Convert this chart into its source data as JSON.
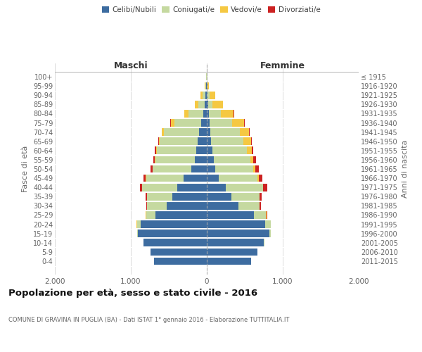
{
  "age_groups": [
    "100+",
    "95-99",
    "90-94",
    "85-89",
    "80-84",
    "75-79",
    "70-74",
    "65-69",
    "60-64",
    "55-59",
    "50-54",
    "45-49",
    "40-44",
    "35-39",
    "30-34",
    "25-29",
    "20-24",
    "15-19",
    "10-14",
    "5-9",
    "0-4"
  ],
  "birth_years": [
    "≤ 1915",
    "1916-1920",
    "1921-1925",
    "1926-1930",
    "1931-1935",
    "1936-1940",
    "1941-1945",
    "1946-1950",
    "1951-1955",
    "1956-1960",
    "1961-1965",
    "1966-1970",
    "1971-1975",
    "1976-1980",
    "1981-1985",
    "1986-1990",
    "1991-1995",
    "1996-2000",
    "2001-2005",
    "2006-2010",
    "2011-2015"
  ],
  "maschi_celibi": [
    4,
    8,
    20,
    25,
    45,
    70,
    105,
    120,
    140,
    160,
    200,
    310,
    390,
    450,
    530,
    680,
    870,
    910,
    830,
    740,
    690
  ],
  "maschi_coniugati": [
    4,
    12,
    40,
    90,
    200,
    360,
    460,
    500,
    520,
    520,
    510,
    490,
    460,
    340,
    260,
    120,
    50,
    10,
    5,
    0,
    0
  ],
  "maschi_vedovi": [
    2,
    4,
    25,
    45,
    55,
    45,
    25,
    12,
    6,
    4,
    2,
    2,
    1,
    0,
    0,
    2,
    2,
    0,
    0,
    0,
    0
  ],
  "maschi_divorziati": [
    0,
    0,
    0,
    0,
    0,
    4,
    5,
    10,
    15,
    20,
    25,
    28,
    28,
    14,
    10,
    4,
    0,
    0,
    0,
    0,
    0
  ],
  "femmine_celibi": [
    2,
    5,
    10,
    15,
    25,
    35,
    45,
    55,
    70,
    90,
    110,
    160,
    250,
    320,
    420,
    620,
    770,
    820,
    750,
    670,
    580
  ],
  "femmine_coniugati": [
    3,
    8,
    30,
    60,
    160,
    300,
    390,
    430,
    460,
    480,
    500,
    510,
    490,
    370,
    270,
    160,
    70,
    18,
    5,
    0,
    0
  ],
  "femmine_vedovi": [
    4,
    18,
    75,
    140,
    170,
    160,
    120,
    95,
    65,
    45,
    28,
    12,
    4,
    4,
    4,
    4,
    4,
    0,
    0,
    0,
    0
  ],
  "femmine_divorziati": [
    0,
    0,
    0,
    0,
    4,
    5,
    8,
    10,
    18,
    32,
    48,
    52,
    48,
    28,
    18,
    8,
    0,
    0,
    0,
    0,
    0
  ],
  "color_celibi": "#3d6ca0",
  "color_coniugati": "#c5d9a0",
  "color_vedovi": "#f5c842",
  "color_divorziati": "#cc2222",
  "xlim": 2000,
  "title": "Popolazione per età, sesso e stato civile - 2016",
  "subtitle": "COMUNE DI GRAVINA IN PUGLIA (BA) - Dati ISTAT 1° gennaio 2016 - Elaborazione TUTTITALIA.IT",
  "ylabel_left": "Fasce di età",
  "ylabel_right": "Anni di nascita",
  "xlabel_maschi": "Maschi",
  "xlabel_femmine": "Femmine",
  "bg_color": "#ffffff",
  "grid_color": "#cccccc",
  "legend_labels": [
    "Celibi/Nubili",
    "Coniugati/e",
    "Vedovi/e",
    "Divorziati/e"
  ]
}
